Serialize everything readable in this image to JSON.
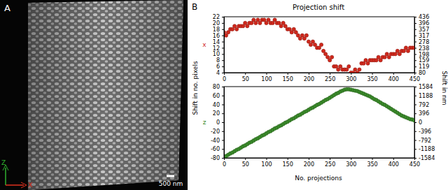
{
  "panel_a": {
    "label": "A",
    "scale_bar": "500 nm",
    "axis_z": "Z",
    "axis_x": "X"
  },
  "panel_b": {
    "label": "B",
    "title": "Projection shift",
    "x_label": "No. projections",
    "y_label": "Shift in no. pixels",
    "y2_label": "Shift in nm"
  },
  "chart_data": [
    {
      "type": "scatter",
      "x": [
        0,
        5,
        10,
        15,
        20,
        25,
        30,
        35,
        40,
        45,
        50,
        55,
        60,
        65,
        70,
        75,
        80,
        85,
        90,
        95,
        100,
        105,
        110,
        115,
        120,
        125,
        130,
        135,
        140,
        145,
        150,
        155,
        160,
        165,
        170,
        175,
        180,
        185,
        190,
        195,
        200,
        205,
        210,
        215,
        220,
        225,
        230,
        235,
        240,
        245,
        250,
        255,
        260,
        265,
        270,
        275,
        280,
        285,
        290,
        295,
        300,
        305,
        310,
        315,
        320,
        325,
        330,
        335,
        340,
        345,
        350,
        355,
        360,
        365,
        370,
        375,
        380,
        385,
        390,
        395,
        400,
        405,
        410,
        415,
        420,
        425,
        430,
        435,
        440,
        445,
        450
      ],
      "series": [
        {
          "name": "x",
          "color": "#d0281c",
          "marker": "circle",
          "values": [
            17,
            16,
            17,
            18,
            18,
            19,
            18,
            19,
            19,
            19,
            20,
            19,
            20,
            20,
            21,
            20,
            21,
            20,
            21,
            21,
            20,
            21,
            20,
            20,
            21,
            20,
            20,
            19,
            20,
            19,
            18,
            18,
            17,
            18,
            17,
            16,
            15,
            16,
            15,
            16,
            14,
            13,
            14,
            13,
            12,
            12,
            13,
            11,
            10,
            9,
            8,
            9,
            6,
            6,
            5,
            6,
            5,
            5,
            5,
            6,
            4,
            4,
            5,
            4,
            5,
            7,
            7,
            8,
            7,
            8,
            8,
            8,
            8,
            9,
            8,
            9,
            9,
            10,
            9,
            10,
            10,
            10,
            11,
            10,
            11,
            11,
            12,
            11,
            12,
            12,
            12
          ]
        }
      ],
      "xlim": [
        0,
        450
      ],
      "xticks": [
        0,
        50,
        100,
        150,
        200,
        250,
        300,
        350,
        400,
        450
      ],
      "ylim": [
        4,
        22
      ],
      "yticks": [
        4,
        6,
        8,
        10,
        12,
        14,
        16,
        18,
        20,
        22
      ],
      "y2lim": [
        80,
        436
      ],
      "y2ticks": [
        80,
        119,
        159,
        198,
        238,
        278,
        317,
        357,
        396,
        436
      ]
    },
    {
      "type": "scatter",
      "x": [
        0,
        5,
        10,
        15,
        20,
        25,
        30,
        35,
        40,
        45,
        50,
        55,
        60,
        65,
        70,
        75,
        80,
        85,
        90,
        95,
        100,
        105,
        110,
        115,
        120,
        125,
        130,
        135,
        140,
        145,
        150,
        155,
        160,
        165,
        170,
        175,
        180,
        185,
        190,
        195,
        200,
        205,
        210,
        215,
        220,
        225,
        230,
        235,
        240,
        245,
        250,
        255,
        260,
        265,
        270,
        275,
        280,
        285,
        290,
        295,
        300,
        305,
        310,
        315,
        320,
        325,
        330,
        335,
        340,
        345,
        350,
        355,
        360,
        365,
        370,
        375,
        380,
        385,
        390,
        395,
        400,
        405,
        410,
        415,
        420,
        425,
        430,
        435,
        440,
        445,
        450
      ],
      "series": [
        {
          "name": "z",
          "color": "#3a8a2a",
          "marker": "circle",
          "values": [
            -78,
            -76,
            -73,
            -70,
            -68,
            -65,
            -62,
            -60,
            -57,
            -54,
            -52,
            -49,
            -46,
            -44,
            -41,
            -38,
            -36,
            -33,
            -30,
            -28,
            -25,
            -22,
            -20,
            -17,
            -14,
            -12,
            -9,
            -7,
            -4,
            -1,
            1,
            4,
            7,
            9,
            12,
            15,
            17,
            20,
            23,
            25,
            28,
            31,
            33,
            36,
            39,
            41,
            44,
            47,
            50,
            52,
            55,
            58,
            61,
            64,
            66,
            69,
            71,
            73,
            74,
            74,
            73,
            72,
            71,
            70,
            68,
            66,
            64,
            62,
            60,
            58,
            55,
            52,
            50,
            47,
            44,
            41,
            39,
            36,
            33,
            30,
            27,
            24,
            21,
            18,
            15,
            13,
            11,
            9,
            7,
            6,
            4
          ]
        }
      ],
      "xlim": [
        0,
        450
      ],
      "xticks": [
        0,
        50,
        100,
        150,
        200,
        250,
        300,
        350,
        400,
        450
      ],
      "ylim": [
        -80,
        80
      ],
      "yticks": [
        -80,
        -60,
        -40,
        -20,
        0,
        20,
        40,
        60,
        80
      ],
      "y2lim": [
        -1584,
        1584
      ],
      "y2ticks": [
        -1584,
        -1188,
        -792,
        -396,
        0,
        396,
        792,
        1188,
        1584
      ]
    }
  ]
}
